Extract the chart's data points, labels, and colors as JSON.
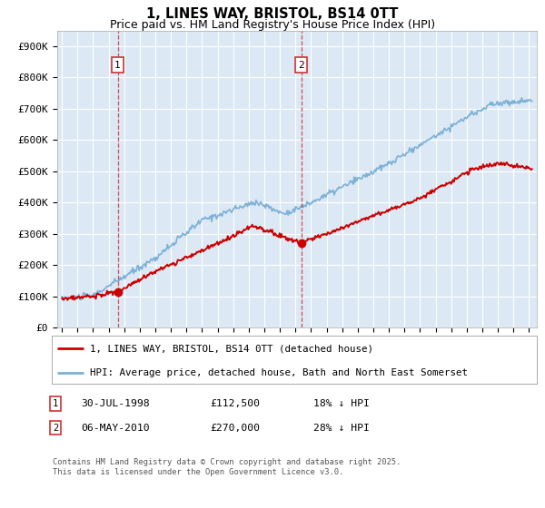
{
  "title": "1, LINES WAY, BRISTOL, BS14 0TT",
  "subtitle": "Price paid vs. HM Land Registry's House Price Index (HPI)",
  "ylabel_ticks": [
    "£0",
    "£100K",
    "£200K",
    "£300K",
    "£400K",
    "£500K",
    "£600K",
    "£700K",
    "£800K",
    "£900K"
  ],
  "ytick_values": [
    0,
    100000,
    200000,
    300000,
    400000,
    500000,
    600000,
    700000,
    800000,
    900000
  ],
  "ylim": [
    0,
    950000
  ],
  "xlim_start": 1994.7,
  "xlim_end": 2025.5,
  "plot_bg_color": "#dce9f5",
  "grid_color": "#ffffff",
  "line1_color": "#cc0000",
  "line2_color": "#7bb0d8",
  "marker1_date": 1998.58,
  "marker2_date": 2010.37,
  "marker1_value": 112500,
  "marker2_value": 270000,
  "legend_label1": "1, LINES WAY, BRISTOL, BS14 0TT (detached house)",
  "legend_label2": "HPI: Average price, detached house, Bath and North East Somerset",
  "annotation1_label": "30-JUL-1998",
  "annotation1_price": "£112,500",
  "annotation1_hpi": "18% ↓ HPI",
  "annotation2_label": "06-MAY-2010",
  "annotation2_price": "£270,000",
  "annotation2_hpi": "28% ↓ HPI",
  "footnote": "Contains HM Land Registry data © Crown copyright and database right 2025.\nThis data is licensed under the Open Government Licence v3.0."
}
